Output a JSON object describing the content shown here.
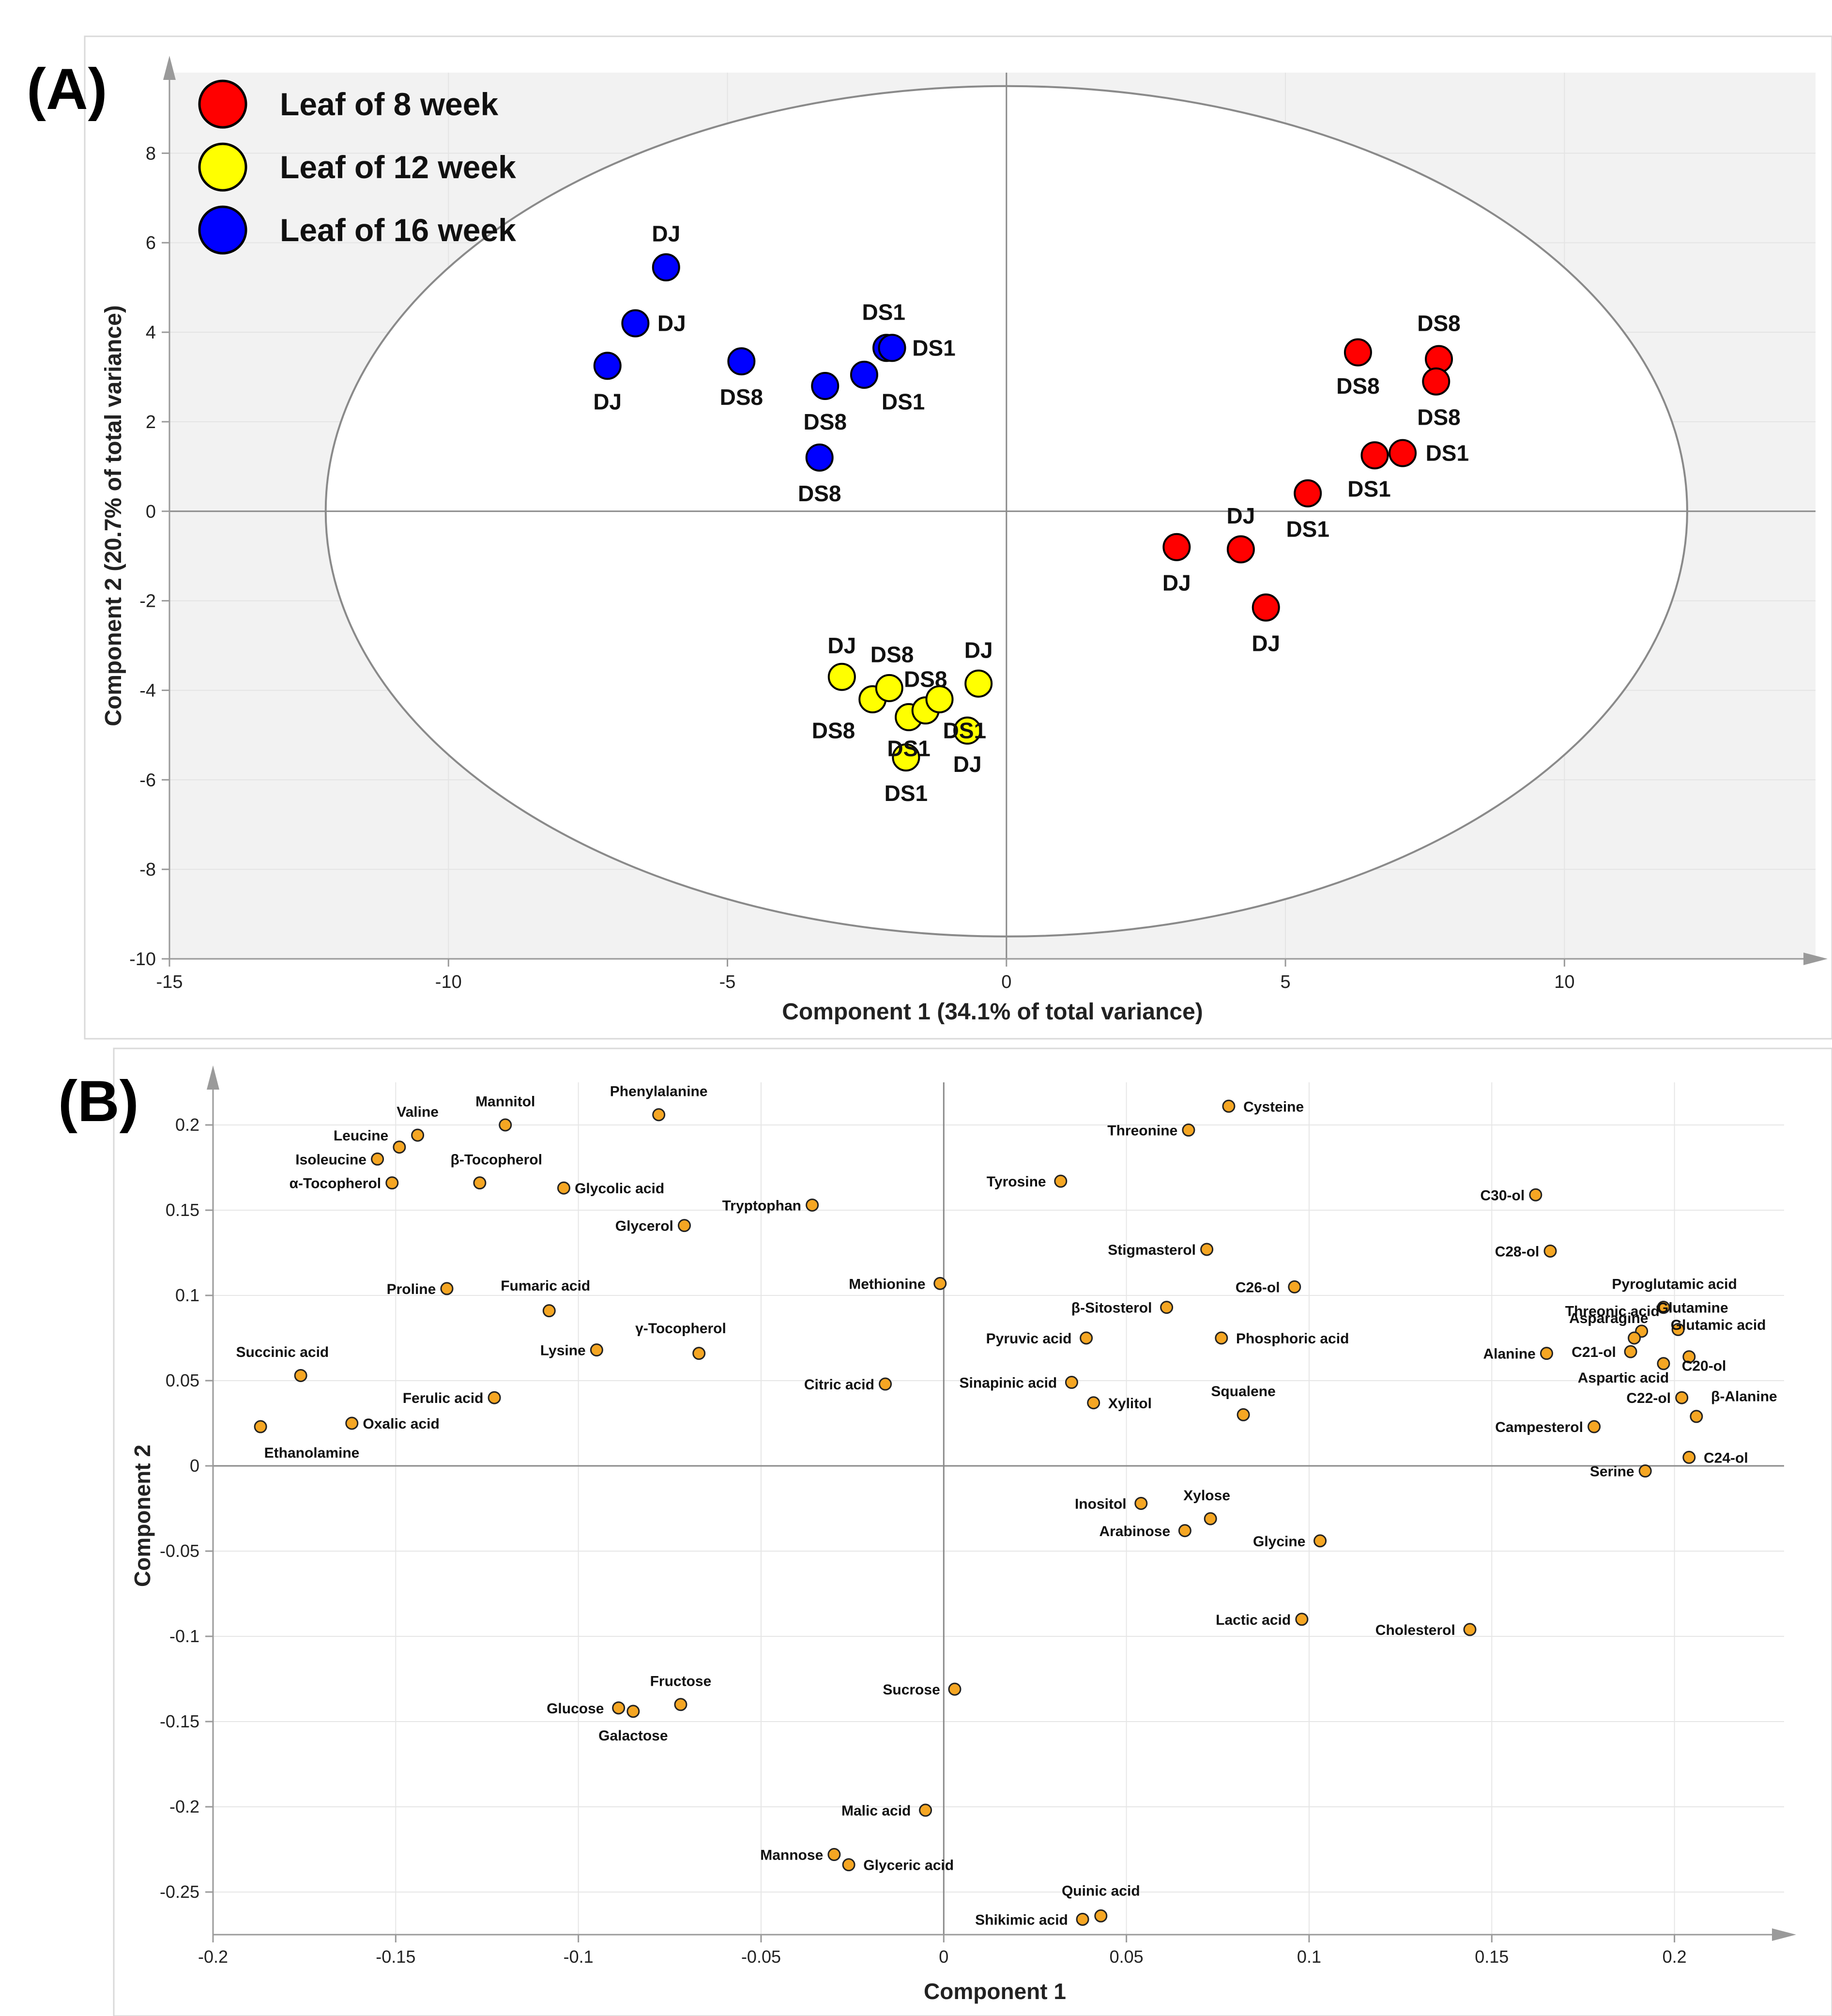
{
  "chart_data": [
    {
      "panel_label": "(A)",
      "type": "scatter",
      "title": "",
      "xlabel": "Component 1 (34.1% of total variance)",
      "ylabel": "Component 2 (20.7% of total variance)",
      "xlim": [
        -15,
        14.5
      ],
      "ylim": [
        -10,
        9.8
      ],
      "xticks": [
        -15,
        -10,
        -5,
        0,
        5,
        10
      ],
      "yticks": [
        -10,
        -8,
        -6,
        -4,
        -2,
        0,
        2,
        4,
        6,
        8
      ],
      "legend": [
        {
          "label": "Leaf of 8 week",
          "color": "#ff0000"
        },
        {
          "label": "Leaf of 12 week",
          "color": "#ffff00"
        },
        {
          "label": "Leaf of 16 week",
          "color": "#0000ff"
        }
      ],
      "ellipse": {
        "cx": 0,
        "cy": 0,
        "rx": 12.2,
        "ry": 9.5
      },
      "series": [
        {
          "name": "Leaf of 8 week",
          "color": "#ff0000",
          "points": [
            {
              "x": 6.3,
              "y": 3.55
            },
            {
              "x": 7.75,
              "y": 3.4
            },
            {
              "x": 7.7,
              "y": 2.9
            },
            {
              "x": 7.1,
              "y": 1.3
            },
            {
              "x": 6.6,
              "y": 1.25
            },
            {
              "x": 5.4,
              "y": 0.4
            },
            {
              "x": 3.05,
              "y": -0.8
            },
            {
              "x": 4.2,
              "y": -0.85
            },
            {
              "x": 4.65,
              "y": -2.15
            }
          ],
          "labels": [
            {
              "text": "DS8",
              "x": 7.75,
              "y": 4.2
            },
            {
              "text": "DS8",
              "x": 6.3,
              "y": 2.8
            },
            {
              "text": "DS8",
              "x": 7.75,
              "y": 2.1
            },
            {
              "text": "DS1",
              "x": 7.9,
              "y": 1.3
            },
            {
              "text": "DS1",
              "x": 6.5,
              "y": 0.5
            },
            {
              "text": "DS1",
              "x": 5.4,
              "y": -0.4
            },
            {
              "text": "DJ",
              "x": 4.2,
              "y": -0.1
            },
            {
              "text": "DJ",
              "x": 3.05,
              "y": -1.6
            },
            {
              "text": "DJ",
              "x": 4.65,
              "y": -2.95
            }
          ]
        },
        {
          "name": "Leaf of 12 week",
          "color": "#ffff00",
          "points": [
            {
              "x": -2.95,
              "y": -3.7
            },
            {
              "x": -2.4,
              "y": -4.2
            },
            {
              "x": -2.1,
              "y": -3.95
            },
            {
              "x": -1.75,
              "y": -4.6
            },
            {
              "x": -1.45,
              "y": -4.45
            },
            {
              "x": -1.2,
              "y": -4.2
            },
            {
              "x": -0.5,
              "y": -3.85
            },
            {
              "x": -0.7,
              "y": -4.9
            },
            {
              "x": -1.8,
              "y": -5.5
            }
          ],
          "labels": [
            {
              "text": "DJ",
              "x": -2.95,
              "y": -3.0
            },
            {
              "text": "DS8",
              "x": -2.05,
              "y": -3.2
            },
            {
              "text": "DS8",
              "x": -1.45,
              "y": -3.75
            },
            {
              "text": "DJ",
              "x": -0.5,
              "y": -3.1
            },
            {
              "text": "DS8",
              "x": -3.1,
              "y": -4.9
            },
            {
              "text": "DS1",
              "x": -1.75,
              "y": -5.3
            },
            {
              "text": "DS1",
              "x": -0.75,
              "y": -4.9
            },
            {
              "text": "DJ",
              "x": -0.7,
              "y": -5.65
            },
            {
              "text": "DS1",
              "x": -1.8,
              "y": -6.3
            }
          ]
        },
        {
          "name": "Leaf of 16 week",
          "color": "#0000ff",
          "points": [
            {
              "x": -6.1,
              "y": 5.45
            },
            {
              "x": -6.65,
              "y": 4.2
            },
            {
              "x": -7.15,
              "y": 3.25
            },
            {
              "x": -4.75,
              "y": 3.35
            },
            {
              "x": -2.15,
              "y": 3.65
            },
            {
              "x": -2.05,
              "y": 3.65
            },
            {
              "x": -2.55,
              "y": 3.05
            },
            {
              "x": -3.25,
              "y": 2.8
            },
            {
              "x": -3.35,
              "y": 1.2
            }
          ],
          "labels": [
            {
              "text": "DJ",
              "x": -6.1,
              "y": 6.2
            },
            {
              "text": "DJ",
              "x": -6.0,
              "y": 4.2
            },
            {
              "text": "DJ",
              "x": -7.15,
              "y": 2.45
            },
            {
              "text": "DS8",
              "x": -4.75,
              "y": 2.55
            },
            {
              "text": "DS1",
              "x": -2.2,
              "y": 4.45
            },
            {
              "text": "DS1",
              "x": -1.3,
              "y": 3.65
            },
            {
              "text": "DS1",
              "x": -1.85,
              "y": 2.45
            },
            {
              "text": "DS8",
              "x": -3.25,
              "y": 2.0
            },
            {
              "text": "DS8",
              "x": -3.35,
              "y": 0.4
            }
          ]
        }
      ]
    },
    {
      "panel_label": "(B)",
      "type": "scatter",
      "title": "",
      "xlabel": "Component 1",
      "ylabel": "Component 2",
      "xlim": [
        -0.2,
        0.23
      ],
      "ylim": [
        -0.275,
        0.225
      ],
      "xticks": [
        -0.2,
        -0.15,
        -0.1,
        -0.05,
        0,
        0.05,
        0.1,
        0.15,
        0.2
      ],
      "xticklabels": [
        "-0.2",
        "-0.15",
        "-0.1",
        "-0.05",
        "0",
        "0.05",
        "0.1",
        "0.15",
        "0.2"
      ],
      "yticks": [
        -0.25,
        -0.2,
        -0.15,
        -0.1,
        -0.05,
        0,
        0.05,
        0.1,
        0.15,
        0.2
      ],
      "yticklabels": [
        "-0.25",
        "-0.2",
        "-0.15",
        "-0.1",
        "-0.05",
        "0",
        "0.05",
        "0.1",
        "0.15",
        "0.2"
      ],
      "point_color": "#f5a623",
      "points": [
        {
          "label": "Valine",
          "x": -0.144,
          "y": 0.194,
          "lx": -0.144,
          "ly": 0.208,
          "anchor": "middle"
        },
        {
          "label": "Mannitol",
          "x": -0.12,
          "y": 0.2,
          "lx": -0.12,
          "ly": 0.214,
          "anchor": "middle"
        },
        {
          "label": "Phenylalanine",
          "x": -0.078,
          "y": 0.206,
          "lx": -0.078,
          "ly": 0.22,
          "anchor": "middle"
        },
        {
          "label": "Leucine",
          "x": -0.149,
          "y": 0.187,
          "lx": -0.152,
          "ly": 0.194,
          "anchor": "end"
        },
        {
          "label": "Isoleucine",
          "x": -0.155,
          "y": 0.18,
          "lx": -0.158,
          "ly": 0.18,
          "anchor": "end"
        },
        {
          "label": "β-Tocopherol",
          "x": -0.127,
          "y": 0.166,
          "lx": -0.135,
          "ly": 0.18,
          "anchor": "start"
        },
        {
          "label": "α-Tocopherol",
          "x": -0.151,
          "y": 0.166,
          "lx": -0.154,
          "ly": 0.166,
          "anchor": "end"
        },
        {
          "label": "Glycolic acid",
          "x": -0.104,
          "y": 0.163,
          "lx": -0.101,
          "ly": 0.163,
          "anchor": "start"
        },
        {
          "label": "Tryptophan",
          "x": -0.036,
          "y": 0.153,
          "lx": -0.039,
          "ly": 0.153,
          "anchor": "end"
        },
        {
          "label": "Glycerol",
          "x": -0.071,
          "y": 0.141,
          "lx": -0.074,
          "ly": 0.141,
          "anchor": "end"
        },
        {
          "label": "Proline",
          "x": -0.136,
          "y": 0.104,
          "lx": -0.139,
          "ly": 0.104,
          "anchor": "end"
        },
        {
          "label": "Fumaric acid",
          "x": -0.108,
          "y": 0.091,
          "lx": -0.109,
          "ly": 0.106,
          "anchor": "middle"
        },
        {
          "label": "γ-Tocopherol",
          "x": -0.067,
          "y": 0.066,
          "lx": -0.072,
          "ly": 0.081,
          "anchor": "middle"
        },
        {
          "label": "Lysine",
          "x": -0.095,
          "y": 0.068,
          "lx": -0.098,
          "ly": 0.068,
          "anchor": "end"
        },
        {
          "label": "Succinic acid",
          "x": -0.176,
          "y": 0.053,
          "lx": -0.181,
          "ly": 0.067,
          "anchor": "middle"
        },
        {
          "label": "Ferulic acid",
          "x": -0.123,
          "y": 0.04,
          "lx": -0.126,
          "ly": 0.04,
          "anchor": "end"
        },
        {
          "label": "Oxalic acid",
          "x": -0.162,
          "y": 0.025,
          "lx": -0.159,
          "ly": 0.025,
          "anchor": "start"
        },
        {
          "label": "Ethanolamine",
          "x": -0.187,
          "y": 0.023,
          "lx": -0.186,
          "ly": 0.008,
          "anchor": "start"
        },
        {
          "label": "Citric acid",
          "x": -0.016,
          "y": 0.048,
          "lx": -0.019,
          "ly": 0.048,
          "anchor": "end"
        },
        {
          "label": "Methionine",
          "x": -0.001,
          "y": 0.107,
          "lx": -0.005,
          "ly": 0.107,
          "anchor": "end"
        },
        {
          "label": "Cysteine",
          "x": 0.078,
          "y": 0.211,
          "lx": 0.082,
          "ly": 0.211,
          "anchor": "start"
        },
        {
          "label": "Threonine",
          "x": 0.067,
          "y": 0.197,
          "lx": 0.064,
          "ly": 0.197,
          "anchor": "end"
        },
        {
          "label": "Tyrosine",
          "x": 0.032,
          "y": 0.167,
          "lx": 0.028,
          "ly": 0.167,
          "anchor": "end"
        },
        {
          "label": "Stigmasterol",
          "x": 0.072,
          "y": 0.127,
          "lx": 0.069,
          "ly": 0.127,
          "anchor": "end"
        },
        {
          "label": "C26-ol",
          "x": 0.096,
          "y": 0.105,
          "lx": 0.092,
          "ly": 0.105,
          "anchor": "end"
        },
        {
          "label": "β-Sitosterol",
          "x": 0.061,
          "y": 0.093,
          "lx": 0.057,
          "ly": 0.093,
          "anchor": "end"
        },
        {
          "label": "Pyruvic acid",
          "x": 0.039,
          "y": 0.075,
          "lx": 0.035,
          "ly": 0.075,
          "anchor": "end"
        },
        {
          "label": "Phosphoric acid",
          "x": 0.076,
          "y": 0.075,
          "lx": 0.08,
          "ly": 0.075,
          "anchor": "start"
        },
        {
          "label": "Sinapinic acid",
          "x": 0.035,
          "y": 0.049,
          "lx": 0.031,
          "ly": 0.049,
          "anchor": "end"
        },
        {
          "label": "Xylitol",
          "x": 0.041,
          "y": 0.037,
          "lx": 0.045,
          "ly": 0.037,
          "anchor": "start"
        },
        {
          "label": "Squalene",
          "x": 0.082,
          "y": 0.03,
          "lx": 0.082,
          "ly": 0.044,
          "anchor": "middle"
        },
        {
          "label": "C30-ol",
          "x": 0.162,
          "y": 0.159,
          "lx": 0.159,
          "ly": 0.159,
          "anchor": "end"
        },
        {
          "label": "C28-ol",
          "x": 0.166,
          "y": 0.126,
          "lx": 0.163,
          "ly": 0.126,
          "anchor": "end"
        },
        {
          "label": "Pyroglutamic acid",
          "x": 0.197,
          "y": 0.093,
          "lx": 0.2,
          "ly": 0.107,
          "anchor": "middle"
        },
        {
          "label": "Glutamine",
          "x": 0.197,
          "y": 0.093,
          "lx": 0.205,
          "ly": 0.093,
          "anchor": "middle"
        },
        {
          "label": "Threonic acid",
          "x": 0.191,
          "y": 0.079,
          "lx": 0.183,
          "ly": 0.091,
          "anchor": "middle"
        },
        {
          "label": "Asparagine",
          "x": 0.189,
          "y": 0.075,
          "lx": 0.182,
          "ly": 0.087,
          "anchor": "middle"
        },
        {
          "label": "Glutamic acid",
          "x": 0.201,
          "y": 0.08,
          "lx": 0.212,
          "ly": 0.083,
          "anchor": "middle"
        },
        {
          "label": "Alanine",
          "x": 0.165,
          "y": 0.066,
          "lx": 0.162,
          "ly": 0.066,
          "anchor": "end"
        },
        {
          "label": "C21-ol",
          "x": 0.188,
          "y": 0.067,
          "lx": 0.184,
          "ly": 0.067,
          "anchor": "end"
        },
        {
          "label": "C20-ol",
          "x": 0.204,
          "y": 0.064,
          "lx": 0.202,
          "ly": 0.059,
          "anchor": "start"
        },
        {
          "label": "Aspartic acid",
          "x": 0.197,
          "y": 0.06,
          "lx": 0.186,
          "ly": 0.052,
          "anchor": "middle"
        },
        {
          "label": "C22-ol",
          "x": 0.202,
          "y": 0.04,
          "lx": 0.199,
          "ly": 0.04,
          "anchor": "end"
        },
        {
          "label": "β-Alanine",
          "x": 0.206,
          "y": 0.029,
          "lx": 0.21,
          "ly": 0.041,
          "anchor": "start"
        },
        {
          "label": "Campesterol",
          "x": 0.178,
          "y": 0.023,
          "lx": 0.175,
          "ly": 0.023,
          "anchor": "end"
        },
        {
          "label": "C24-ol",
          "x": 0.204,
          "y": 0.005,
          "lx": 0.208,
          "ly": 0.005,
          "anchor": "start"
        },
        {
          "label": "Serine",
          "x": 0.192,
          "y": -0.003,
          "lx": 0.189,
          "ly": -0.003,
          "anchor": "end"
        },
        {
          "label": "Inositol",
          "x": 0.054,
          "y": -0.022,
          "lx": 0.05,
          "ly": -0.022,
          "anchor": "end"
        },
        {
          "label": "Xylose",
          "x": 0.073,
          "y": -0.031,
          "lx": 0.072,
          "ly": -0.017,
          "anchor": "middle"
        },
        {
          "label": "Arabinose",
          "x": 0.066,
          "y": -0.038,
          "lx": 0.062,
          "ly": -0.038,
          "anchor": "end"
        },
        {
          "label": "Glycine",
          "x": 0.103,
          "y": -0.044,
          "lx": 0.099,
          "ly": -0.044,
          "anchor": "end"
        },
        {
          "label": "Lactic acid",
          "x": 0.098,
          "y": -0.09,
          "lx": 0.095,
          "ly": -0.09,
          "anchor": "end"
        },
        {
          "label": "Cholesterol",
          "x": 0.144,
          "y": -0.096,
          "lx": 0.14,
          "ly": -0.096,
          "anchor": "end"
        },
        {
          "label": "Sucrose",
          "x": 0.003,
          "y": -0.131,
          "lx": -0.001,
          "ly": -0.131,
          "anchor": "end"
        },
        {
          "label": "Fructose",
          "x": -0.072,
          "y": -0.14,
          "lx": -0.072,
          "ly": -0.126,
          "anchor": "middle"
        },
        {
          "label": "Glucose",
          "x": -0.089,
          "y": -0.142,
          "lx": -0.093,
          "ly": -0.142,
          "anchor": "end"
        },
        {
          "label": "Galactose",
          "x": -0.085,
          "y": -0.144,
          "lx": -0.085,
          "ly": -0.158,
          "anchor": "middle"
        },
        {
          "label": "Malic acid",
          "x": -0.005,
          "y": -0.202,
          "lx": -0.009,
          "ly": -0.202,
          "anchor": "end"
        },
        {
          "label": "Mannose",
          "x": -0.03,
          "y": -0.228,
          "lx": -0.033,
          "ly": -0.228,
          "anchor": "end"
        },
        {
          "label": "Glyceric acid",
          "x": -0.026,
          "y": -0.234,
          "lx": -0.022,
          "ly": -0.234,
          "anchor": "start"
        },
        {
          "label": "Quinic acid",
          "x": 0.043,
          "y": -0.264,
          "lx": 0.043,
          "ly": -0.249,
          "anchor": "middle"
        },
        {
          "label": "Shikimic acid",
          "x": 0.038,
          "y": -0.266,
          "lx": 0.034,
          "ly": -0.266,
          "anchor": "end"
        }
      ]
    }
  ]
}
